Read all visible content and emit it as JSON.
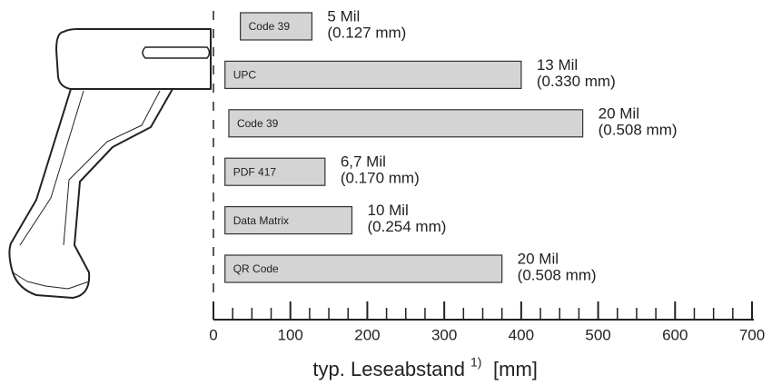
{
  "chart_data": {
    "type": "range-bar",
    "categories": [
      "Code 39",
      "UPC",
      "Code 39",
      "PDF 417",
      "Data Matrix",
      "QR Code"
    ],
    "starts": [
      35,
      15,
      20,
      15,
      15,
      15
    ],
    "ends": [
      128,
      400,
      480,
      145,
      180,
      375
    ],
    "annotations": [
      [
        "5 Mil",
        "(0.127 mm)"
      ],
      [
        "13 Mil",
        "(0.330 mm)"
      ],
      [
        "20 Mil",
        "(0.508 mm)"
      ],
      [
        "6,7 Mil",
        "(0.170 mm)"
      ],
      [
        "10 Mil",
        "(0.254 mm)"
      ],
      [
        "20 Mil",
        "(0.508 mm)"
      ]
    ],
    "color": "#d4d4d4",
    "xlim": [
      0,
      700
    ],
    "xticks": [
      0,
      100,
      200,
      300,
      400,
      500,
      600,
      700
    ],
    "minor_xticks": [
      25,
      50,
      75,
      125,
      150,
      175,
      225,
      250,
      275,
      325,
      350,
      375,
      425,
      450,
      475,
      525,
      550,
      575,
      625,
      650,
      675
    ],
    "xlabel": "typ. Leseabstand",
    "xlabel_note": "1)",
    "xlabel_unit": "[mm]"
  }
}
